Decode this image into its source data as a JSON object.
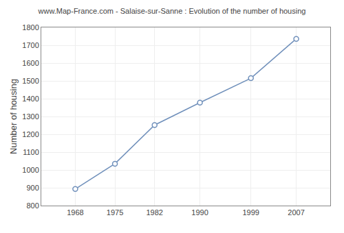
{
  "chart_data": {
    "type": "line",
    "title": "www.Map-France.com - Salaise-sur-Sanne : Evolution of the number of housing",
    "ylabel": "Number of housing",
    "x": [
      1968,
      1975,
      1982,
      1990,
      1999,
      2007
    ],
    "values": [
      893,
      1035,
      1252,
      1378,
      1515,
      1736
    ],
    "xlim": [
      1962,
      2013
    ],
    "xticks": [
      1968,
      1975,
      1982,
      1990,
      1999,
      2007
    ],
    "ylim": [
      800,
      1800
    ],
    "yticks": [
      800,
      900,
      1000,
      1100,
      1200,
      1300,
      1400,
      1500,
      1600,
      1700,
      1800
    ],
    "grid": true,
    "color": "#7090bb",
    "marker": "circle"
  }
}
